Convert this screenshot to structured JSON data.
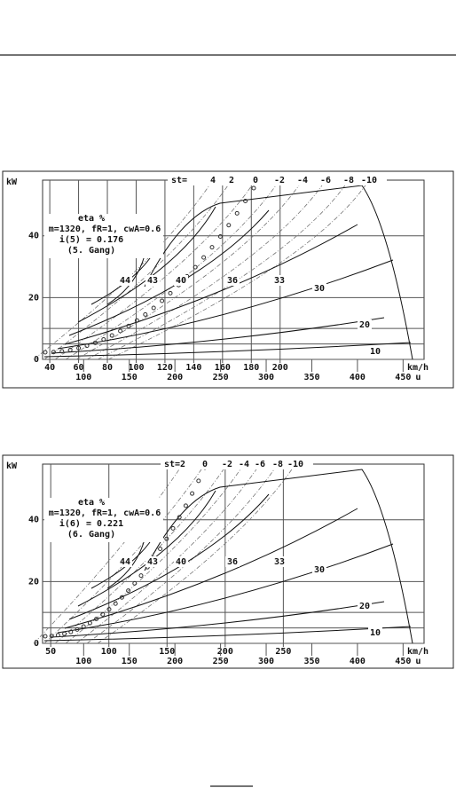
{
  "figures": [
    {
      "y_unit": "kW",
      "ylim": [
        0,
        58
      ],
      "yticks": [
        0,
        20,
        40
      ],
      "st_label": "st=",
      "st_values": [
        4,
        2,
        0,
        -2,
        -4,
        -6,
        -8,
        -10
      ],
      "info": [
        "eta %",
        "m=1320, fR=1, cwA=0.6",
        "i(5) = 0.176",
        "(5. Gang)"
      ],
      "speed_unit": "km/h",
      "speed_lim": [
        35,
        300
      ],
      "speed_ticks": [
        40,
        60,
        80,
        100,
        120,
        140,
        160,
        180,
        200
      ],
      "rpm_unit": "u",
      "rpm_lim": [
        55,
        473
      ],
      "rpm_ticks": [
        100,
        150,
        200,
        250,
        300,
        350,
        400,
        450
      ],
      "contour_labels": [
        44,
        43,
        40,
        36,
        33,
        30,
        20,
        10
      ]
    },
    {
      "y_unit": "kW",
      "ylim": [
        0,
        58
      ],
      "yticks": [
        0,
        20,
        40
      ],
      "st_label": "st=",
      "st_values": [
        2,
        0,
        -2,
        -4,
        -6,
        -8,
        -10
      ],
      "info": [
        "eta %",
        "m=1320, fR=1, cwA=0.6",
        "i(6) = 0.221",
        "(6. Gang)"
      ],
      "speed_unit": "km/h",
      "speed_lim": [
        43,
        371
      ],
      "speed_ticks": [
        50,
        100,
        150,
        200,
        250
      ],
      "rpm_unit": "u",
      "rpm_lim": [
        55,
        473
      ],
      "rpm_ticks": [
        100,
        150,
        200,
        250,
        300,
        350,
        400,
        450
      ],
      "contour_labels": [
        44,
        43,
        40,
        36,
        33,
        30,
        20,
        10
      ]
    }
  ]
}
